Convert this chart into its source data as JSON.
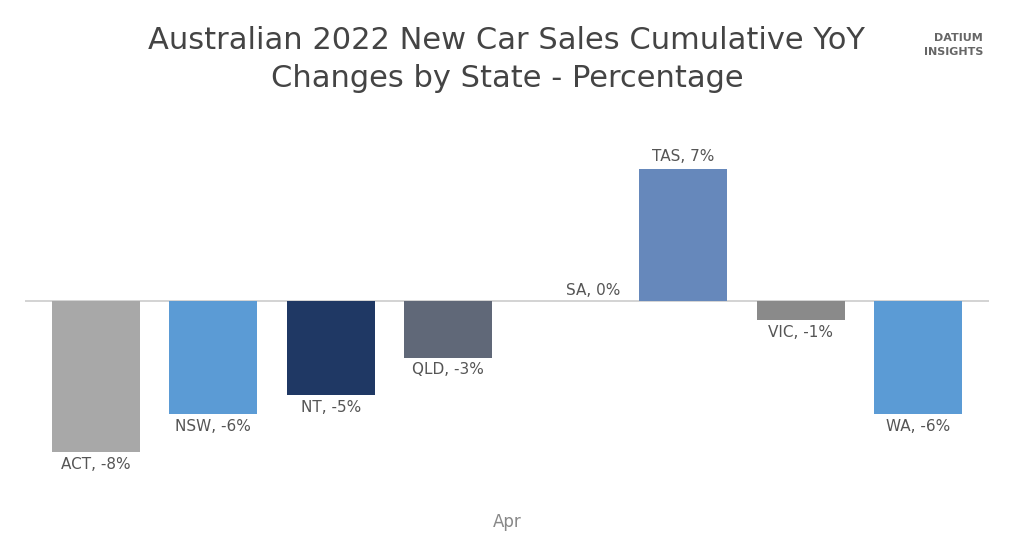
{
  "title": "Australian 2022 New Car Sales Cumulative YoY\nChanges by State - Percentage",
  "categories": [
    "ACT",
    "NSW",
    "NT",
    "QLD",
    "SA",
    "TAS",
    "VIC",
    "WA"
  ],
  "values": [
    -8,
    -6,
    -5,
    -3,
    0,
    7,
    -1,
    -6
  ],
  "bar_colors": [
    "#a8a8a8",
    "#5b9bd5",
    "#1f3864",
    "#606878",
    "#cccccc",
    "#6688bb",
    "#8a8a8a",
    "#5b9bd5"
  ],
  "xlabel": "Apr",
  "ylim": [
    -10.5,
    9.5
  ],
  "background_color": "#ffffff",
  "title_fontsize": 22,
  "label_fontsize": 11,
  "xlabel_fontsize": 12,
  "figsize": [
    10.24,
    5.57
  ],
  "dpi": 100
}
